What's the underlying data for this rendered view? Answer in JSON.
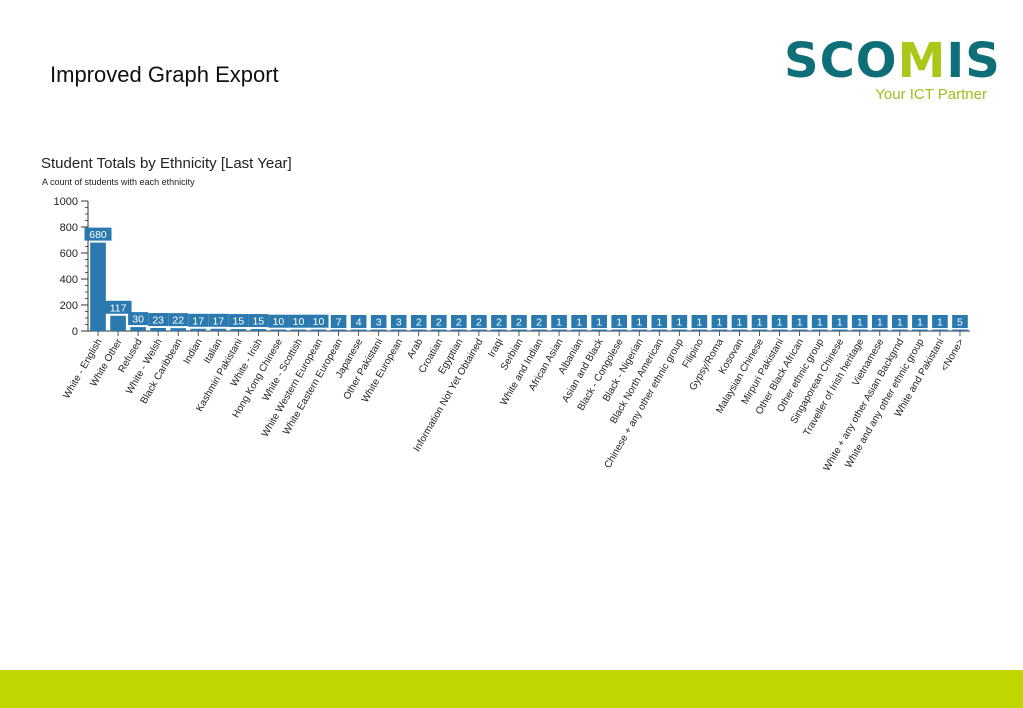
{
  "slide": {
    "title": "Improved Graph Export"
  },
  "logo": {
    "word_part1": "SCO",
    "word_part2": "M",
    "word_part3": "IS",
    "tagline": "Your ICT Partner",
    "primary_color": "#0f6f78",
    "accent_color": "#a9c81a"
  },
  "footer": {
    "color": "#bfd600"
  },
  "chart_data": {
    "type": "bar",
    "title": "Student Totals by Ethnicity [Last Year]",
    "subtitle": "A count of students with each ethnicity",
    "xlabel": "",
    "ylabel": "",
    "ylim": [
      0,
      1000
    ],
    "yticks": [
      0,
      200,
      400,
      600,
      800,
      1000
    ],
    "bar_color": "#2a7ab0",
    "categories": [
      "White - English",
      "White Other",
      "Refused",
      "White - Welsh",
      "Black Caribbean",
      "Indian",
      "Italian",
      "Kashmiri Pakistani",
      "White - Irish",
      "Hong Kong Chinese",
      "White - Scottish",
      "White Western European",
      "White Eastern European",
      "Japanese",
      "Other Pakistani",
      "White European",
      "Arab",
      "Croatian",
      "Egyptian",
      "Information Not Yet Obtained",
      "Iraqi",
      "Serbian",
      "White and Indian",
      "African Asian",
      "Albanian",
      "Asian and Black",
      "Black - Congolese",
      "Black - Nigerian",
      "Black North American",
      "Chinese + any other ethnic group",
      "Filipino",
      "Gypsy/Roma",
      "Kosovan",
      "Malaysian Chinese",
      "Mirpuri Pakistani",
      "Other Black African",
      "Other ethnic group",
      "Singaporean Chinese",
      "Traveller of Irish heritage",
      "Vietnamese",
      "White + any other Asian Backgrnd",
      "White and any other ethnic group",
      "White and Pakistani",
      "<None>"
    ],
    "values": [
      680,
      117,
      30,
      23,
      22,
      17,
      17,
      15,
      15,
      10,
      10,
      10,
      7,
      4,
      3,
      3,
      2,
      2,
      2,
      2,
      2,
      2,
      2,
      1,
      1,
      1,
      1,
      1,
      1,
      1,
      1,
      1,
      1,
      1,
      1,
      1,
      1,
      1,
      1,
      1,
      1,
      1,
      1,
      5
    ],
    "grid": false,
    "legend": "none"
  }
}
